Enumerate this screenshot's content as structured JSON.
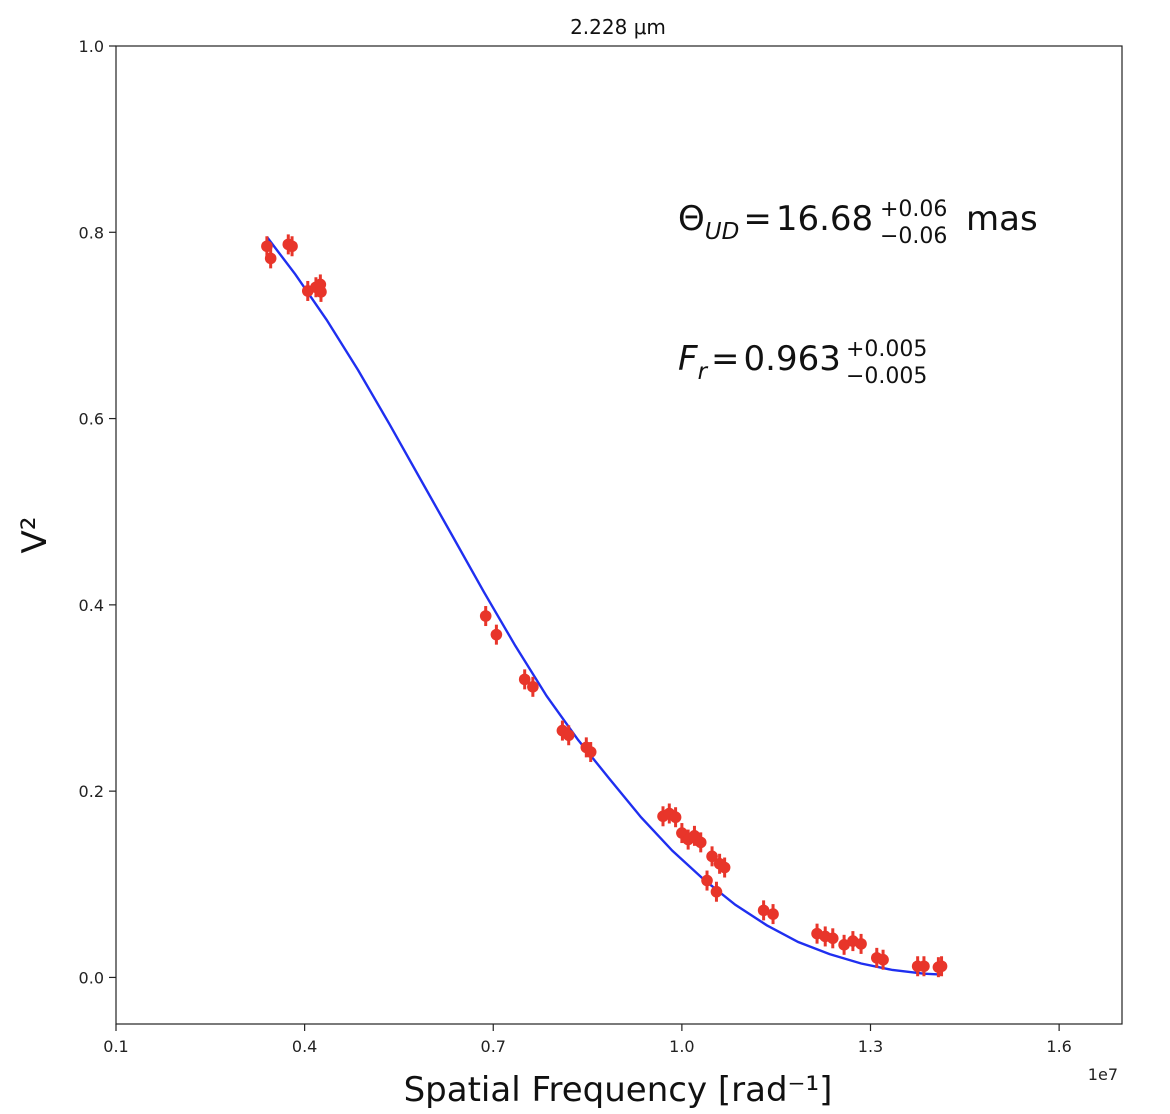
{
  "chart_data": {
    "type": "scatter",
    "title": "2.228 μm",
    "xlabel": "Spatial Frequency [rad⁻¹]",
    "ylabel": "V²",
    "x_offset_text": "1e7",
    "xlim": [
      0.1,
      1.7
    ],
    "ylim": [
      -0.05,
      1.0
    ],
    "x_ticks": [
      0.1,
      0.4,
      0.7,
      1.0,
      1.3,
      1.6
    ],
    "x_tick_labels": [
      "0.1",
      "0.4",
      "0.7",
      "1.0",
      "1.3",
      "1.6"
    ],
    "y_ticks": [
      0.0,
      0.2,
      0.4,
      0.6,
      0.8,
      1.0
    ],
    "y_tick_labels": [
      "0.0",
      "0.2",
      "0.4",
      "0.6",
      "0.8",
      "1.0"
    ],
    "grid": false,
    "colors": {
      "points": "#e8352a",
      "fit": "#1f2ff0"
    },
    "annotations": {
      "theta": {
        "symbol": "Θ",
        "subscript": "UD",
        "value": "16.68",
        "plus": "+0.06",
        "minus": "−0.06",
        "unit": "mas"
      },
      "fr": {
        "symbol": "F",
        "subscript": "r",
        "value": "0.963",
        "plus": "+0.005",
        "minus": "−0.005"
      }
    },
    "series": [
      {
        "type": "scatter",
        "points": [
          [
            0.34,
            0.785
          ],
          [
            0.346,
            0.772
          ],
          [
            0.374,
            0.787
          ],
          [
            0.38,
            0.785
          ],
          [
            0.405,
            0.737
          ],
          [
            0.418,
            0.741
          ],
          [
            0.425,
            0.744
          ],
          [
            0.426,
            0.736
          ],
          [
            0.688,
            0.388
          ],
          [
            0.705,
            0.368
          ],
          [
            0.75,
            0.32
          ],
          [
            0.763,
            0.312
          ],
          [
            0.81,
            0.265
          ],
          [
            0.82,
            0.26
          ],
          [
            0.848,
            0.247
          ],
          [
            0.855,
            0.242
          ],
          [
            0.97,
            0.173
          ],
          [
            0.98,
            0.176
          ],
          [
            0.99,
            0.172
          ],
          [
            1.0,
            0.155
          ],
          [
            1.01,
            0.148
          ],
          [
            1.02,
            0.152
          ],
          [
            1.03,
            0.145
          ],
          [
            1.04,
            0.104
          ],
          [
            1.048,
            0.13
          ],
          [
            1.055,
            0.092
          ],
          [
            1.06,
            0.122
          ],
          [
            1.068,
            0.118
          ],
          [
            1.13,
            0.072
          ],
          [
            1.145,
            0.068
          ],
          [
            1.215,
            0.047
          ],
          [
            1.228,
            0.044
          ],
          [
            1.24,
            0.042
          ],
          [
            1.258,
            0.035
          ],
          [
            1.272,
            0.039
          ],
          [
            1.285,
            0.036
          ],
          [
            1.31,
            0.021
          ],
          [
            1.32,
            0.019
          ],
          [
            1.375,
            0.012
          ],
          [
            1.385,
            0.012
          ],
          [
            1.408,
            0.011
          ],
          [
            1.413,
            0.012
          ]
        ]
      },
      {
        "type": "line",
        "x": [
          0.34,
          0.385,
          0.435,
          0.485,
          0.535,
          0.585,
          0.635,
          0.685,
          0.735,
          0.785,
          0.835,
          0.885,
          0.935,
          0.985,
          1.035,
          1.085,
          1.135,
          1.185,
          1.235,
          1.285,
          1.335,
          1.385,
          1.413
        ],
        "y": [
          0.795,
          0.755,
          0.706,
          0.652,
          0.594,
          0.534,
          0.474,
          0.414,
          0.356,
          0.302,
          0.255,
          0.213,
          0.172,
          0.136,
          0.105,
          0.078,
          0.056,
          0.038,
          0.025,
          0.015,
          0.008,
          0.004,
          0.003
        ]
      }
    ]
  }
}
